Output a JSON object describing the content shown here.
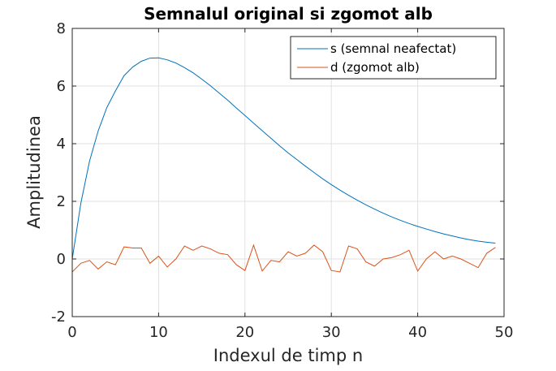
{
  "chart_data": {
    "type": "line",
    "title": "Semnalul original si zgomot alb",
    "xlabel": "Indexul de timp n",
    "ylabel": "Amplitudinea",
    "xlim": [
      0,
      50
    ],
    "ylim": [
      -2,
      8
    ],
    "xticks": [
      0,
      10,
      20,
      30,
      40,
      50
    ],
    "yticks": [
      -2,
      0,
      2,
      4,
      6,
      8
    ],
    "x": [
      0,
      1,
      2,
      3,
      4,
      5,
      6,
      7,
      8,
      9,
      10,
      11,
      12,
      13,
      14,
      15,
      16,
      17,
      18,
      19,
      20,
      21,
      22,
      23,
      24,
      25,
      26,
      27,
      28,
      29,
      30,
      31,
      32,
      33,
      34,
      35,
      36,
      37,
      38,
      39,
      40,
      41,
      42,
      43,
      44,
      45,
      46,
      47,
      48,
      49
    ],
    "grid": true,
    "legend_position": "top-right",
    "series": [
      {
        "name": "s (semnal neafectat)",
        "color": "#0072BD",
        "values": [
          0.0,
          1.94,
          3.39,
          4.44,
          5.25,
          5.83,
          6.36,
          6.66,
          6.86,
          6.97,
          6.98,
          6.91,
          6.8,
          6.64,
          6.46,
          6.24,
          6.01,
          5.76,
          5.51,
          5.24,
          4.98,
          4.71,
          4.45,
          4.19,
          3.93,
          3.68,
          3.45,
          3.22,
          3.0,
          2.78,
          2.58,
          2.39,
          2.21,
          2.04,
          1.88,
          1.73,
          1.59,
          1.46,
          1.34,
          1.23,
          1.13,
          1.04,
          0.95,
          0.87,
          0.8,
          0.73,
          0.67,
          0.62,
          0.58,
          0.55
        ]
      },
      {
        "name": "d (zgomot alb)",
        "color": "#D95319",
        "values": [
          -0.45,
          -0.15,
          -0.05,
          -0.35,
          -0.1,
          -0.2,
          0.42,
          0.38,
          0.38,
          -0.15,
          0.1,
          -0.28,
          0.0,
          0.45,
          0.3,
          0.45,
          0.35,
          0.2,
          0.15,
          -0.2,
          -0.4,
          0.48,
          -0.42,
          -0.05,
          -0.1,
          0.25,
          0.1,
          0.2,
          0.48,
          0.25,
          -0.4,
          -0.45,
          0.45,
          0.35,
          -0.1,
          -0.25,
          0.0,
          0.05,
          0.15,
          0.3,
          -0.42,
          0.0,
          0.25,
          0.0,
          0.1,
          0.0,
          -0.15,
          -0.3,
          0.2,
          0.4
        ]
      }
    ]
  }
}
